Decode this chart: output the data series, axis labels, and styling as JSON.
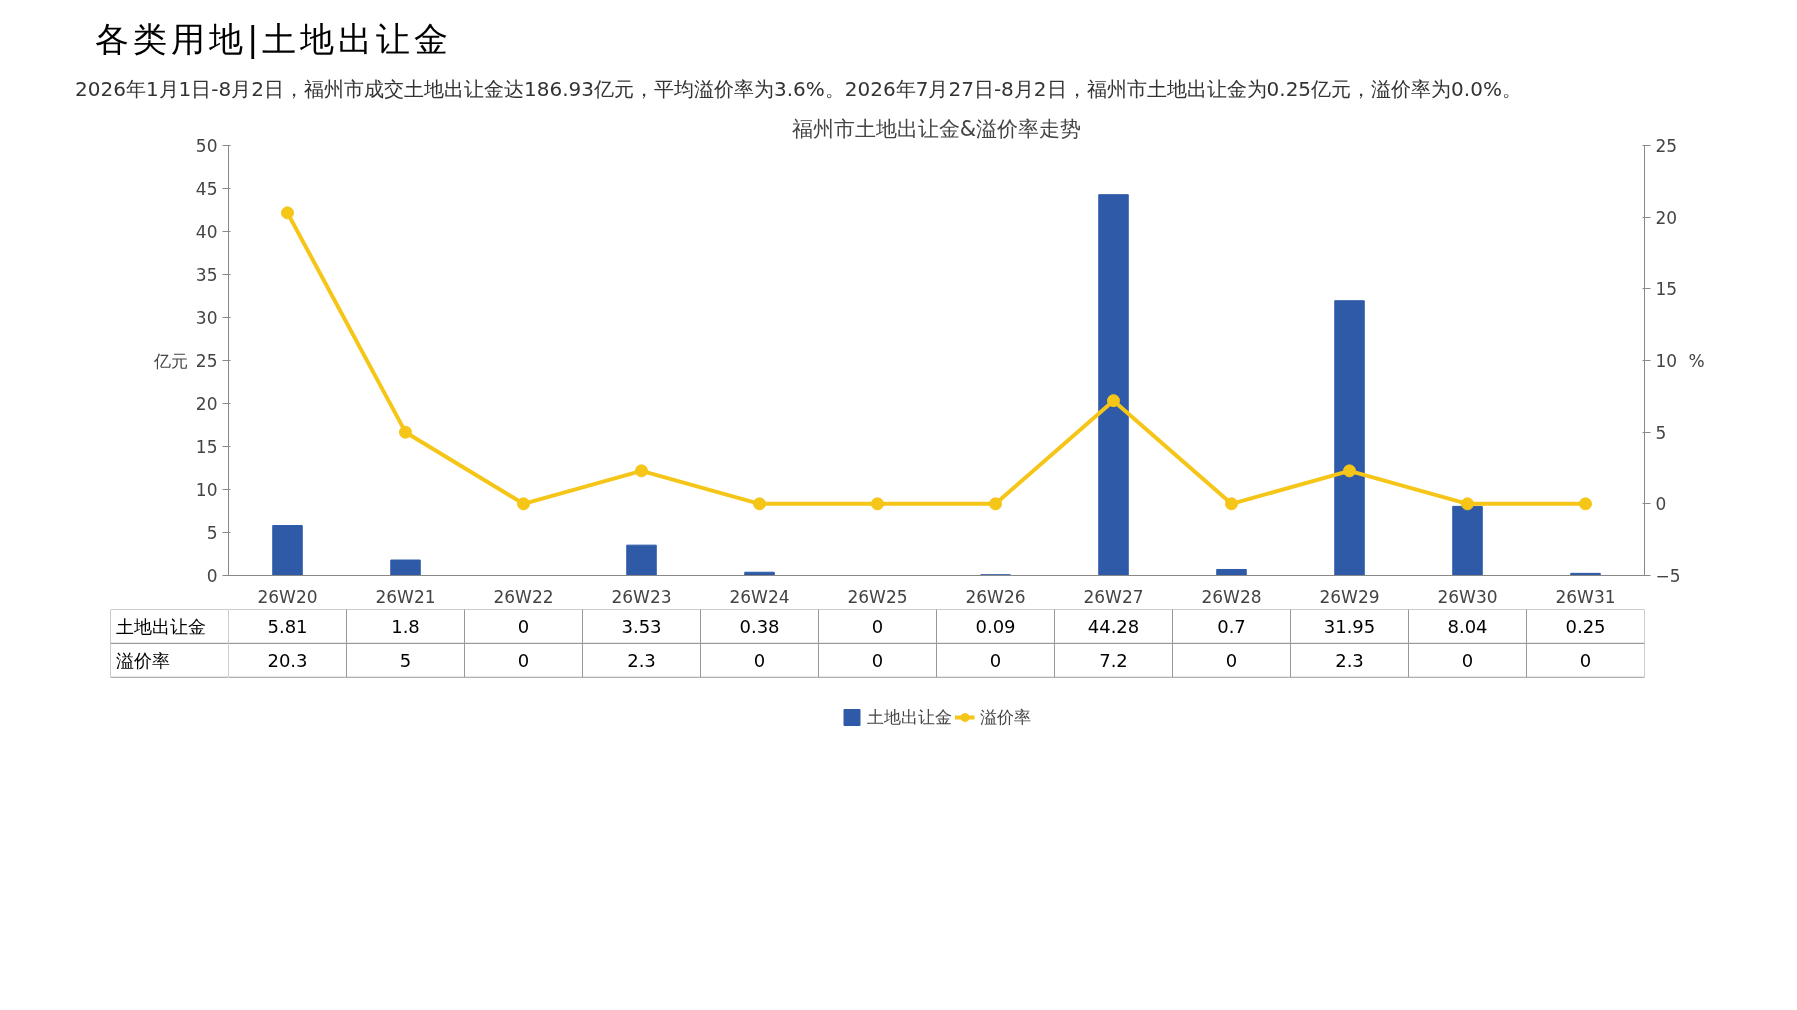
{
  "chart_data": {
    "type": "bar",
    "title": "各类用地|土地出让金",
    "subtitle": "2026年1月1日-8月2日，福州市成交土地出让金达186.93亿元，平均溢价率为3.6%。2026年7月27日-8月2日，福州市土地出让金为0.25亿元，溢价率为0.0%。",
    "annotations": [
      "福州市土地出让金&溢价率走势"
    ],
    "ylabel": "亿元",
    "y2label": "%",
    "categories": [
      "26W20",
      "26W21",
      "26W22",
      "26W23",
      "26W24",
      "26W25",
      "26W26",
      "26W27",
      "26W28",
      "26W29",
      "26W30",
      "26W31"
    ],
    "series": [
      {
        "name": "土地出让金",
        "color": "#2e5aa8",
        "values": [
          5.81,
          1.8,
          0,
          3.53,
          0.38,
          0,
          0.09,
          44.28,
          0.7,
          31.95,
          8.04,
          0.25
        ]
      },
      {
        "name": "溢价率",
        "type": "line",
        "axis": "y2",
        "color": "#f5c518",
        "values": [
          20.3,
          5,
          0,
          2.3,
          0,
          0,
          0,
          7.2,
          0,
          2.3,
          0,
          0
        ]
      }
    ],
    "ylim": [
      0,
      50
    ],
    "yticks": [
      0,
      5,
      10,
      15,
      20,
      25,
      30,
      35,
      40,
      45,
      50
    ],
    "y2lim": [
      -5,
      25
    ],
    "y2ticks": [
      -5,
      0,
      5,
      10,
      15,
      20,
      25
    ],
    "grid": false,
    "legend": "bottom",
    "marker": "circle",
    "line_style": "solid",
    "data_labels": true
  }
}
